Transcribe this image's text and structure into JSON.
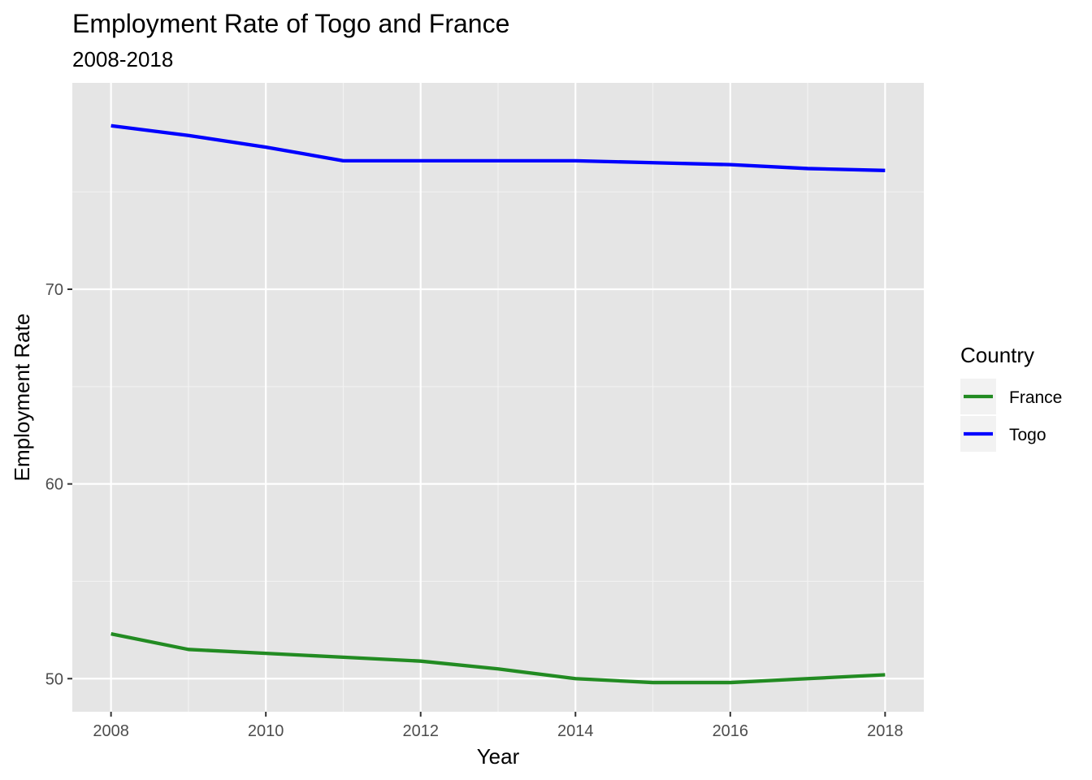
{
  "chart_data": {
    "type": "line",
    "title": "Employment Rate of Togo and France",
    "subtitle": "2008-2018",
    "xlabel": "Year",
    "ylabel": "Employment Rate",
    "x": [
      2008,
      2009,
      2010,
      2011,
      2012,
      2013,
      2014,
      2015,
      2016,
      2017,
      2018
    ],
    "xticks": [
      2008,
      2010,
      2012,
      2014,
      2016,
      2018
    ],
    "yticks": [
      50,
      60,
      70
    ],
    "xlim": [
      2007.5,
      2018.5
    ],
    "ylim": [
      48.3,
      80.6
    ],
    "grid": true,
    "legend": {
      "title": "Country",
      "position": "right"
    },
    "series": [
      {
        "name": "France",
        "color": "#228B22",
        "values": [
          52.3,
          51.5,
          51.3,
          51.1,
          50.9,
          50.5,
          50.0,
          49.8,
          49.8,
          50.0,
          50.2
        ]
      },
      {
        "name": "Togo",
        "color": "#0000FF",
        "values": [
          78.4,
          77.9,
          77.3,
          76.6,
          76.6,
          76.6,
          76.6,
          76.5,
          76.4,
          76.2,
          76.1
        ]
      }
    ]
  }
}
